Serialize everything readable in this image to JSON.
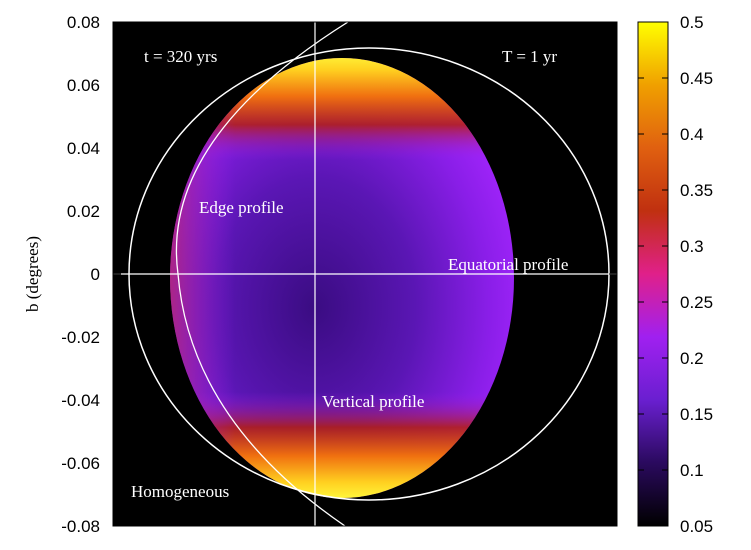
{
  "chart_data": {
    "type": "heatmap",
    "title": "",
    "xlabel": "",
    "ylabel": "b (degrees)",
    "ylim": [
      -0.08,
      0.08
    ],
    "yticks": [
      "0.08",
      "0.06",
      "0.04",
      "0.02",
      "0",
      "-0.02",
      "-0.04",
      "-0.06",
      "-0.08"
    ],
    "colorbar": {
      "range": [
        0.05,
        0.5
      ],
      "ticks": [
        "0.5",
        "0.45",
        "0.4",
        "0.35",
        "0.3",
        "0.25",
        "0.2",
        "0.15",
        "0.1",
        "0.05"
      ],
      "colormap": [
        "#000000",
        "#2a0a5e",
        "#6a1fd0",
        "#a020f0",
        "#e0208a",
        "#c03010",
        "#e06010",
        "#f0a000",
        "#ffff00"
      ]
    },
    "background_color": "#000000",
    "annotations": {
      "time": "t = 320 yrs",
      "period": "T = 1 yr",
      "edge": "Edge profile",
      "equatorial": "Equatorial profile",
      "vertical": "Vertical profile",
      "homogeneous": "Homogeneous"
    },
    "emission_region": {
      "b_top": 0.0695,
      "b_bottom": -0.0695,
      "min_intensity": 0.08,
      "edge_intensity": 0.5
    }
  }
}
